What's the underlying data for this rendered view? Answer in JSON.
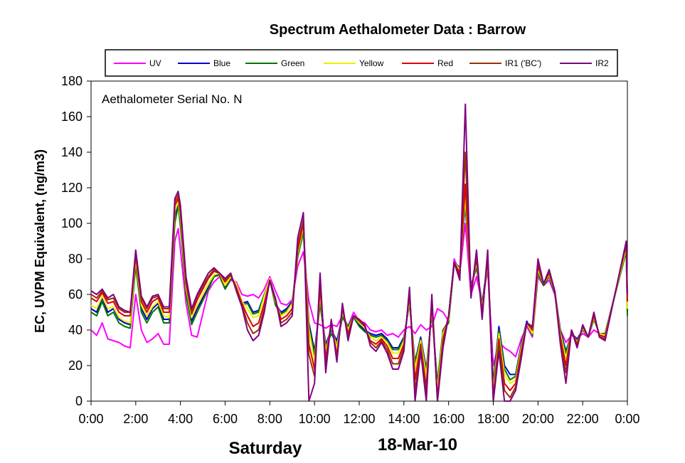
{
  "chart_data": {
    "type": "line",
    "title": "Spectrum Aethalometer Data  :  Barrow",
    "ylabel": "EC, UVPM Equivalent, (ng/m3)",
    "annotation": "Aethalometer  Serial No. N",
    "day_label": "Saturday",
    "date_label": "18-Mar-10",
    "xlim": [
      0,
      24
    ],
    "ylim": [
      0,
      180
    ],
    "grid": false,
    "legend_position": "top, boxed",
    "x_ticks": [
      0,
      2,
      4,
      6,
      8,
      10,
      12,
      14,
      16,
      18,
      20,
      22,
      24
    ],
    "x_tick_labels": [
      "0:00",
      "2:00",
      "4:00",
      "6:00",
      "8:00",
      "10:00",
      "12:00",
      "14:00",
      "16:00",
      "18:00",
      "20:00",
      "22:00",
      "0:00"
    ],
    "y_ticks": [
      0,
      20,
      40,
      60,
      80,
      100,
      120,
      140,
      160,
      180
    ],
    "y_tick_labels": [
      "0",
      "20",
      "40",
      "60",
      "80",
      "100",
      "120",
      "140",
      "160",
      "180"
    ],
    "x_hours": [
      0,
      0.25,
      0.5,
      0.75,
      1,
      1.25,
      1.5,
      1.75,
      2,
      2.25,
      2.5,
      2.75,
      3,
      3.25,
      3.5,
      3.75,
      3.9,
      4,
      4.25,
      4.5,
      4.75,
      5.25,
      5.5,
      5.75,
      6,
      6.25,
      6.5,
      6.75,
      7,
      7.25,
      7.5,
      7.75,
      8,
      8.25,
      8.5,
      8.75,
      9,
      9.25,
      9.5,
      9.75,
      10,
      10.25,
      10.5,
      10.75,
      11,
      11.25,
      11.5,
      11.75,
      12,
      12.25,
      12.5,
      12.75,
      13,
      13.25,
      13.5,
      13.75,
      14,
      14.25,
      14.5,
      14.75,
      15,
      15.25,
      15.5,
      15.75,
      16,
      16.25,
      16.5,
      16.75,
      17,
      17.25,
      17.5,
      17.75,
      18,
      18.25,
      18.5,
      18.75,
      19,
      19.25,
      19.5,
      19.75,
      20,
      20.25,
      20.5,
      20.75,
      21,
      21.25,
      21.5,
      21.75,
      22,
      22.25,
      22.5,
      22.75,
      23,
      23.95,
      24
    ],
    "series": [
      {
        "name": "UV",
        "color": "#ff00ff",
        "values": [
          40,
          37,
          44,
          35,
          34,
          33,
          31,
          30,
          60,
          40,
          33,
          35,
          38,
          32,
          32,
          90,
          97,
          85,
          55,
          37,
          36,
          62,
          67,
          70,
          63,
          68,
          67,
          60,
          59,
          60,
          58,
          63,
          70,
          62,
          55,
          54,
          57,
          76,
          84,
          56,
          44,
          43,
          41,
          43,
          42,
          48,
          42,
          50,
          45,
          44,
          40,
          39,
          40,
          37,
          38,
          36,
          40,
          42,
          38,
          43,
          40,
          42,
          52,
          50,
          45,
          80,
          72,
          100,
          60,
          70,
          55,
          74,
          20,
          33,
          30,
          28,
          25,
          35,
          42,
          36,
          70,
          65,
          68,
          60,
          40,
          33,
          37,
          35,
          38,
          36,
          40,
          38,
          36,
          null,
          null
        ]
      },
      {
        "name": "Blue",
        "color": "#0000cc",
        "values": [
          52,
          50,
          58,
          50,
          52,
          46,
          44,
          43,
          78,
          52,
          46,
          52,
          55,
          46,
          46,
          104,
          110,
          100,
          62,
          45,
          52,
          64,
          70,
          72,
          64,
          69,
          66,
          55,
          56,
          50,
          51,
          60,
          68,
          55,
          50,
          52,
          56,
          82,
          96,
          44,
          28,
          55,
          32,
          40,
          34,
          48,
          42,
          48,
          43,
          40,
          38,
          37,
          38,
          35,
          30,
          30,
          36,
          55,
          22,
          36,
          18,
          50,
          10,
          40,
          45,
          78,
          75,
          110,
          65,
          75,
          55,
          78,
          10,
          42,
          20,
          15,
          15,
          32,
          45,
          38,
          72,
          66,
          70,
          62,
          40,
          28,
          38,
          35,
          40,
          36,
          46,
          38,
          38,
          85,
          50
        ]
      },
      {
        "name": "Green",
        "color": "#007700",
        "values": [
          50,
          48,
          56,
          48,
          50,
          44,
          42,
          41,
          76,
          50,
          44,
          50,
          53,
          44,
          44,
          100,
          110,
          98,
          60,
          43,
          50,
          63,
          70,
          71,
          63,
          69,
          66,
          54,
          55,
          49,
          50,
          60,
          68,
          54,
          49,
          51,
          55,
          81,
          95,
          42,
          26,
          55,
          30,
          38,
          32,
          47,
          42,
          47,
          42,
          39,
          37,
          36,
          37,
          34,
          29,
          29,
          35,
          55,
          21,
          35,
          17,
          50,
          10,
          40,
          44,
          77,
          74,
          112,
          64,
          76,
          54,
          77,
          8,
          40,
          18,
          12,
          14,
          31,
          44,
          37,
          72,
          65,
          70,
          61,
          39,
          27,
          38,
          34,
          40,
          36,
          46,
          38,
          38,
          84,
          48
        ]
      },
      {
        "name": "Yellow",
        "color": "#eeee00",
        "values": [
          54,
          52,
          59,
          52,
          53,
          47,
          45,
          44,
          80,
          54,
          48,
          53,
          56,
          48,
          47,
          107,
          113,
          103,
          64,
          47,
          54,
          66,
          71,
          72,
          65,
          70,
          66,
          56,
          52,
          47,
          48,
          59,
          69,
          56,
          48,
          50,
          55,
          83,
          98,
          40,
          22,
          60,
          28,
          42,
          30,
          50,
          40,
          48,
          44,
          41,
          36,
          34,
          36,
          33,
          27,
          27,
          34,
          57,
          18,
          34,
          14,
          52,
          6,
          38,
          46,
          78,
          74,
          115,
          63,
          78,
          52,
          78,
          5,
          38,
          15,
          10,
          12,
          30,
          44,
          38,
          74,
          66,
          71,
          62,
          38,
          24,
          39,
          33,
          41,
          36,
          47,
          38,
          37,
          86,
          52
        ]
      },
      {
        "name": "Red",
        "color": "#dd0000",
        "values": [
          58,
          56,
          61,
          55,
          56,
          50,
          48,
          48,
          82,
          56,
          50,
          56,
          58,
          50,
          50,
          110,
          114,
          106,
          66,
          49,
          57,
          69,
          73,
          72,
          67,
          71,
          64,
          55,
          48,
          42,
          44,
          55,
          68,
          57,
          46,
          48,
          52,
          85,
          100,
          32,
          18,
          64,
          24,
          44,
          26,
          52,
          38,
          48,
          45,
          42,
          34,
          32,
          35,
          31,
          24,
          24,
          32,
          60,
          12,
          32,
          8,
          55,
          2,
          35,
          48,
          78,
          72,
          122,
          62,
          80,
          50,
          80,
          2,
          35,
          10,
          6,
          10,
          28,
          44,
          40,
          76,
          66,
          72,
          62,
          36,
          20,
          40,
          32,
          42,
          36,
          48,
          37,
          36,
          88,
          56
        ]
      },
      {
        "name": "IR1 ('BC')",
        "color": "#993300",
        "values": [
          60,
          58,
          62,
          57,
          58,
          52,
          50,
          50,
          84,
          58,
          52,
          58,
          59,
          52,
          52,
          112,
          116,
          108,
          68,
          50,
          59,
          70,
          74,
          72,
          68,
          71,
          63,
          54,
          44,
          38,
          40,
          52,
          68,
          57,
          44,
          46,
          50,
          88,
          102,
          26,
          14,
          68,
          20,
          45,
          24,
          53,
          36,
          48,
          45,
          42,
          33,
          30,
          34,
          29,
          21,
          21,
          30,
          62,
          6,
          30,
          4,
          58,
          0,
          32,
          48,
          78,
          70,
          140,
          60,
          82,
          48,
          82,
          0,
          32,
          6,
          2,
          8,
          26,
          44,
          41,
          78,
          66,
          73,
          62,
          34,
          16,
          40,
          31,
          42,
          36,
          49,
          36,
          35,
          89,
          58
        ]
      },
      {
        "name": "IR2",
        "color": "#800080",
        "values": [
          62,
          60,
          63,
          58,
          60,
          53,
          51,
          50,
          85,
          59,
          53,
          59,
          60,
          53,
          53,
          114,
          118,
          110,
          70,
          52,
          60,
          72,
          75,
          72,
          69,
          72,
          62,
          53,
          40,
          34,
          37,
          50,
          68,
          58,
          42,
          44,
          48,
          92,
          106,
          0,
          10,
          72,
          16,
          46,
          22,
          55,
          34,
          48,
          46,
          43,
          31,
          28,
          33,
          27,
          18,
          18,
          28,
          64,
          0,
          28,
          0,
          60,
          0,
          30,
          48,
          78,
          68,
          167,
          58,
          85,
          46,
          85,
          0,
          28,
          0,
          0,
          6,
          24,
          44,
          42,
          80,
          66,
          74,
          62,
          32,
          10,
          40,
          30,
          43,
          36,
          50,
          36,
          34,
          90,
          60
        ]
      }
    ]
  }
}
